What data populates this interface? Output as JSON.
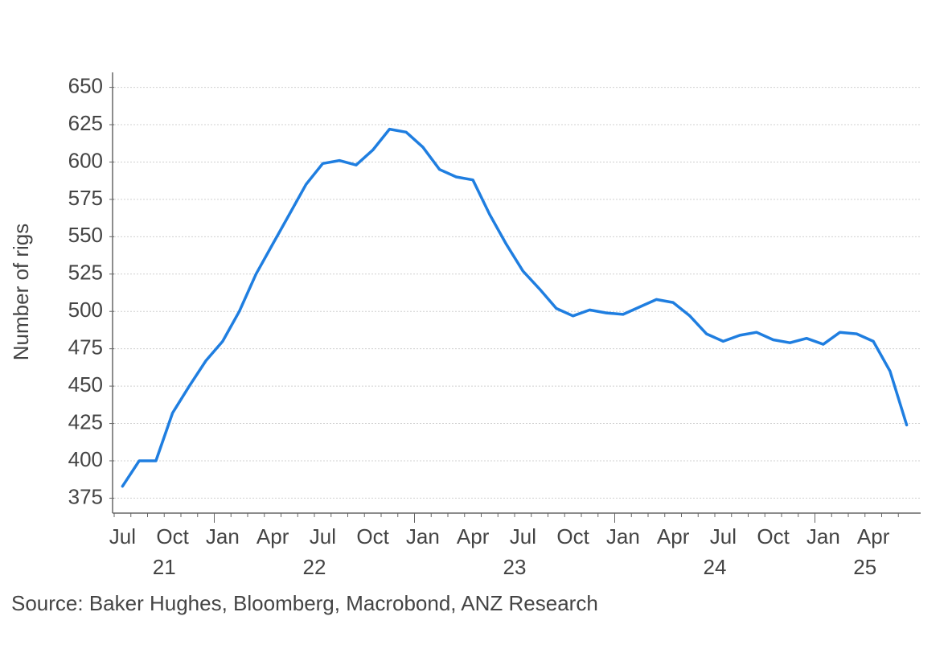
{
  "chart_data": {
    "type": "line",
    "y_label": "Number of rigs",
    "source": "Source: Baker Hughes, Bloomberg, Macrobond, ANZ Research",
    "x": [
      "2021-07",
      "2021-08",
      "2021-09",
      "2021-10",
      "2021-11",
      "2021-12",
      "2022-01",
      "2022-02",
      "2022-03",
      "2022-04",
      "2022-05",
      "2022-06",
      "2022-07",
      "2022-08",
      "2022-09",
      "2022-10",
      "2022-11",
      "2022-12",
      "2023-01",
      "2023-02",
      "2023-03",
      "2023-04",
      "2023-05",
      "2023-06",
      "2023-07",
      "2023-08",
      "2023-09",
      "2023-10",
      "2023-11",
      "2023-12",
      "2024-01",
      "2024-02",
      "2024-03",
      "2024-04",
      "2024-05",
      "2024-06",
      "2024-07",
      "2024-08",
      "2024-09",
      "2024-10",
      "2024-11",
      "2024-12",
      "2025-01",
      "2025-02",
      "2025-03",
      "2025-04",
      "2025-05",
      "2025-06"
    ],
    "values": [
      383,
      400,
      400,
      432,
      450,
      467,
      480,
      500,
      525,
      545,
      565,
      585,
      599,
      601,
      598,
      608,
      622,
      620,
      610,
      595,
      590,
      588,
      565,
      545,
      527,
      515,
      502,
      497,
      501,
      499,
      498,
      503,
      508,
      506,
      497,
      485,
      480,
      484,
      486,
      481,
      479,
      482,
      478,
      486,
      485,
      480,
      460,
      424
    ],
    "color": "#1f7ee0",
    "xlim": [
      "2021-07",
      "2025-06"
    ],
    "xticks": [
      {
        "value": "2021-07",
        "label": "Jul"
      },
      {
        "value": "2021-10",
        "label": "Oct"
      },
      {
        "value": "2022-01",
        "label": "Jan"
      },
      {
        "value": "2022-04",
        "label": "Apr"
      },
      {
        "value": "2022-07",
        "label": "Jul"
      },
      {
        "value": "2022-10",
        "label": "Oct"
      },
      {
        "value": "2023-01",
        "label": "Jan"
      },
      {
        "value": "2023-04",
        "label": "Apr"
      },
      {
        "value": "2023-07",
        "label": "Jul"
      },
      {
        "value": "2023-10",
        "label": "Oct"
      },
      {
        "value": "2024-01",
        "label": "Jan"
      },
      {
        "value": "2024-04",
        "label": "Apr"
      },
      {
        "value": "2024-07",
        "label": "Jul"
      },
      {
        "value": "2024-10",
        "label": "Oct"
      },
      {
        "value": "2025-01",
        "label": "Jan"
      },
      {
        "value": "2025-04",
        "label": "Apr"
      }
    ],
    "year_ticks": [
      {
        "value": 2021,
        "label": "21"
      },
      {
        "value": 2022,
        "label": "22"
      },
      {
        "value": 2023,
        "label": "23"
      },
      {
        "value": 2024,
        "label": "24"
      },
      {
        "value": 2025,
        "label": "25"
      }
    ],
    "ylim": [
      365,
      660
    ],
    "yticks": [
      375,
      400,
      425,
      450,
      475,
      500,
      525,
      550,
      575,
      600,
      625,
      650
    ],
    "grid": true
  }
}
